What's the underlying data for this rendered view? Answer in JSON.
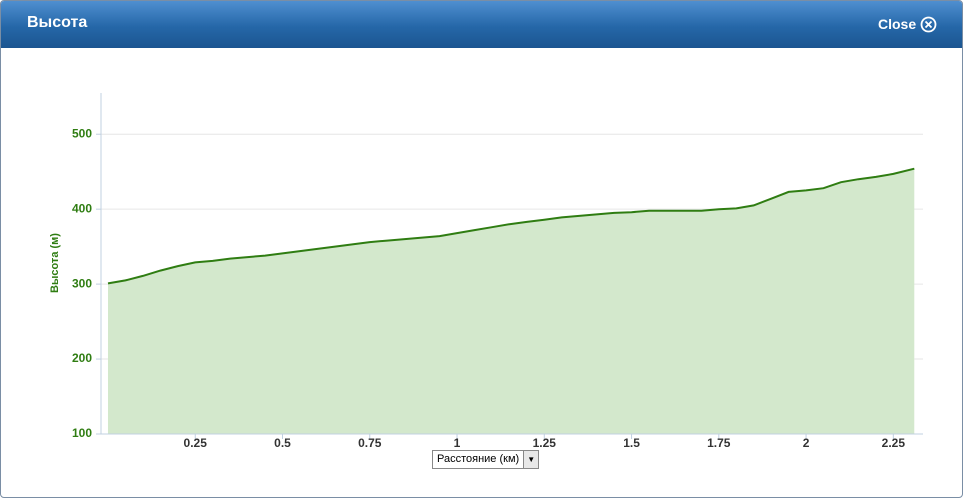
{
  "header": {
    "title": "Высота",
    "close": "Close"
  },
  "chart_data": {
    "type": "area",
    "y_label": "Высота (м)",
    "x_label": "Расстояние (км)",
    "x": [
      0,
      0.05,
      0.1,
      0.15,
      0.2,
      0.25,
      0.3,
      0.35,
      0.4,
      0.45,
      0.5,
      0.55,
      0.6,
      0.65,
      0.7,
      0.75,
      0.8,
      0.85,
      0.9,
      0.95,
      1.0,
      1.05,
      1.1,
      1.15,
      1.2,
      1.25,
      1.3,
      1.35,
      1.4,
      1.45,
      1.5,
      1.55,
      1.6,
      1.65,
      1.7,
      1.75,
      1.8,
      1.85,
      1.9,
      1.95,
      2.0,
      2.05,
      2.1,
      2.15,
      2.2,
      2.25,
      2.31
    ],
    "values": [
      301,
      305,
      311,
      318,
      324,
      329,
      331,
      334,
      336,
      338,
      341,
      344,
      347,
      350,
      353,
      356,
      358,
      360,
      362,
      364,
      368,
      372,
      376,
      380,
      383,
      386,
      389,
      391,
      393,
      395,
      396,
      398,
      398,
      398,
      398,
      400,
      401,
      405,
      414,
      423,
      425,
      428,
      436,
      440,
      443,
      447,
      454
    ],
    "color": "#2f7d12",
    "fill": "#d3e8cc",
    "xlim": [
      -0.02,
      2.335
    ],
    "ylim": [
      100,
      555
    ],
    "xticks": [
      0.25,
      0.5,
      0.75,
      1,
      1.25,
      1.5,
      1.75,
      2,
      2.25
    ],
    "yticks": [
      100,
      200,
      300,
      400,
      500
    ],
    "grid": true
  }
}
